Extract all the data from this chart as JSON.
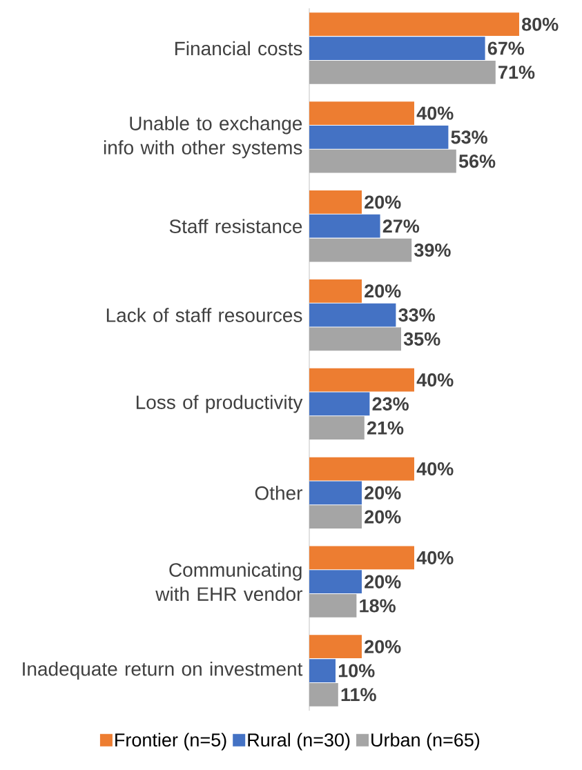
{
  "chart_data": {
    "type": "bar",
    "orientation": "horizontal",
    "legend": "bottom",
    "categories": [
      "Financial costs",
      "Unable to exchange info with other systems",
      "Staff resistance",
      "Lack of staff resources",
      "Loss of productivity",
      "Other",
      "Communicating with EHR vendor",
      "Inadequate return on investment"
    ],
    "series": [
      {
        "name": "Frontier (n=5)",
        "color": "#ed7d31",
        "values": [
          80,
          40,
          20,
          20,
          40,
          40,
          40,
          20
        ],
        "value_labels": [
          "80%",
          "40%",
          "20%",
          "20%",
          "40%",
          "40%",
          "40%",
          "20%"
        ]
      },
      {
        "name": "Rural (n=30)",
        "color": "#4472c4",
        "values": [
          67,
          53,
          27,
          33,
          23,
          20,
          20,
          10
        ],
        "value_labels": [
          "67%",
          "53%",
          "27%",
          "33%",
          "23%",
          "20%",
          "20%",
          "10%"
        ]
      },
      {
        "name": "Urban (n=65)",
        "color": "#a5a5a5",
        "values": [
          71,
          56,
          39,
          35,
          21,
          20,
          18,
          11
        ],
        "value_labels": [
          "71%",
          "56%",
          "39%",
          "35%",
          "21%",
          "20%",
          "18%",
          "11%"
        ]
      }
    ]
  }
}
